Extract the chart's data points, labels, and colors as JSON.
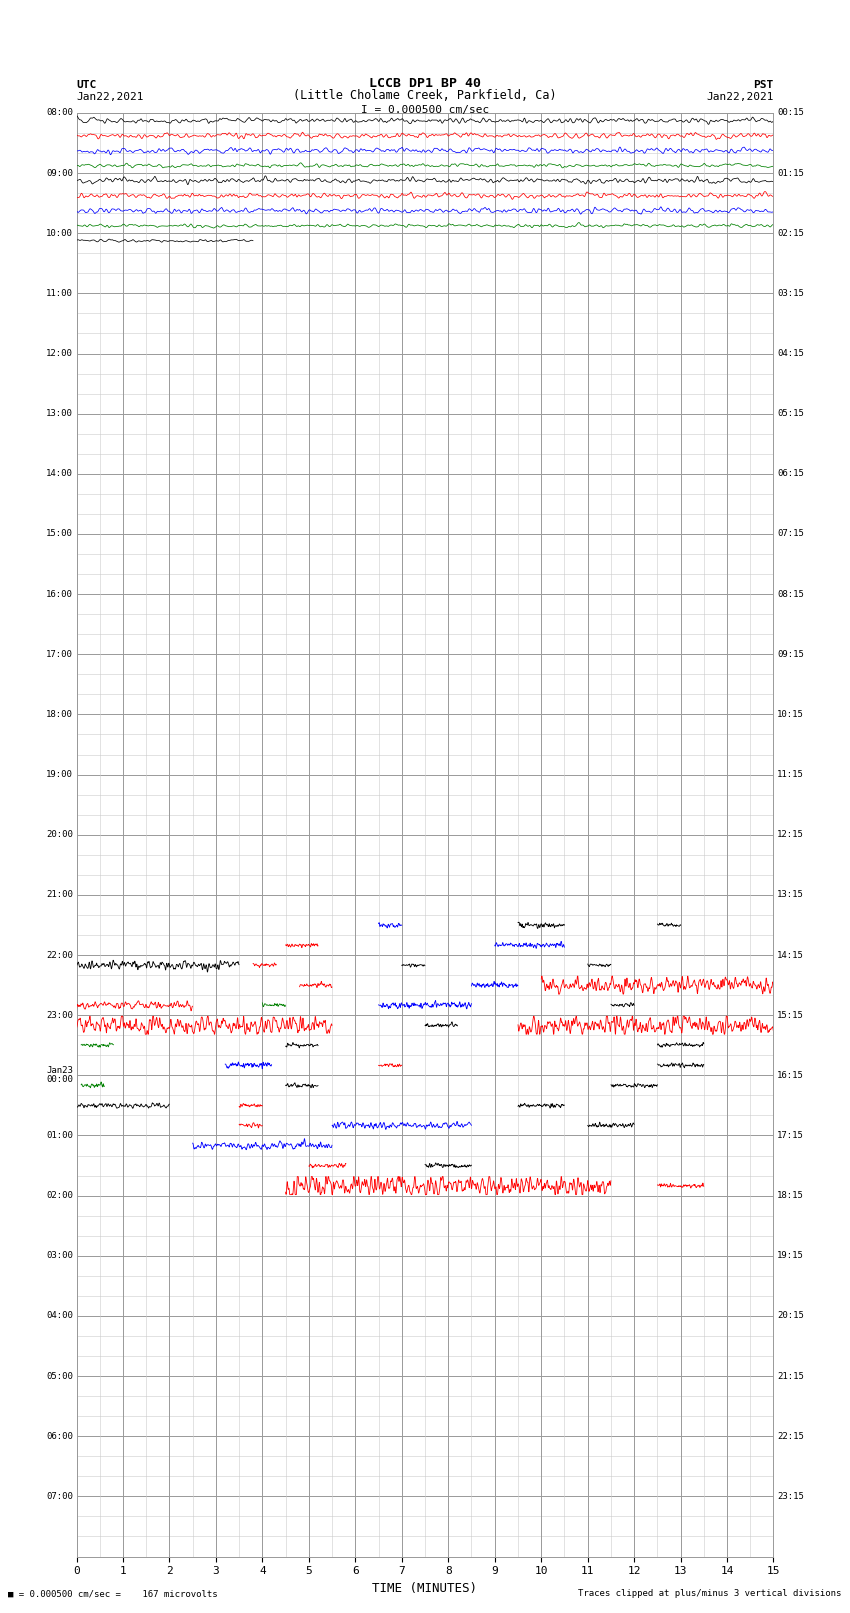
{
  "title_line1": "LCCB DP1 BP 40",
  "title_line2": "(Little Cholame Creek, Parkfield, Ca)",
  "scale_label": "I = 0.000500 cm/sec",
  "left_label_top": "UTC",
  "left_label_date": "Jan22,2021",
  "right_label_top": "PST",
  "right_label_date": "Jan22,2021",
  "bottom_label": "TIME (MINUTES)",
  "bottom_note_left": "= 0.000500 cm/sec =    167 microvolts",
  "bottom_note_right": "Traces clipped at plus/minus 3 vertical divisions",
  "xlabel_ticks": [
    0,
    1,
    2,
    3,
    4,
    5,
    6,
    7,
    8,
    9,
    10,
    11,
    12,
    13,
    14,
    15
  ],
  "utc_labels_hourly": [
    "08:00",
    "09:00",
    "10:00",
    "11:00",
    "12:00",
    "13:00",
    "14:00",
    "15:00",
    "16:00",
    "17:00",
    "18:00",
    "19:00",
    "20:00",
    "21:00",
    "22:00",
    "23:00",
    "Jan23\n00:00",
    "01:00",
    "02:00",
    "03:00",
    "04:00",
    "05:00",
    "06:00",
    "07:00"
  ],
  "pst_labels_hourly": [
    "00:15",
    "01:15",
    "02:15",
    "03:15",
    "04:15",
    "05:15",
    "06:15",
    "07:15",
    "08:15",
    "09:15",
    "10:15",
    "11:15",
    "12:15",
    "13:15",
    "14:15",
    "15:15",
    "16:15",
    "17:15",
    "18:15",
    "19:15",
    "20:15",
    "21:15",
    "22:15",
    "23:15"
  ],
  "n_rows": 72,
  "background_color": "#ffffff",
  "grid_color_minor": "#cccccc",
  "grid_color_major": "#999999",
  "fig_width": 8.5,
  "fig_height": 16.13,
  "dpi": 100
}
